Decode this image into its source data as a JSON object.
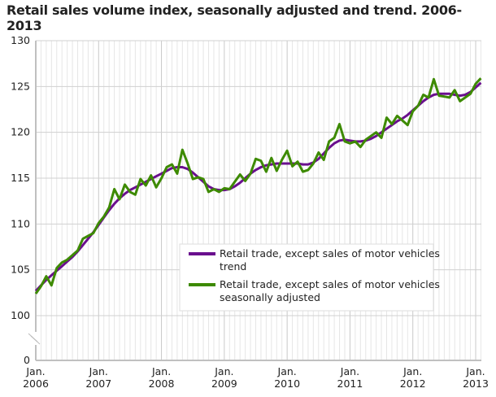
{
  "chart_data": {
    "type": "line",
    "title": "Retail sales volume index, seasonally adjusted and trend. 2006-2013",
    "xlabel": "",
    "ylabel": "",
    "x_start": "2006-01",
    "x_end": "2013-02",
    "x_frequency": "monthly",
    "x_tick_labels": [
      [
        "Jan.",
        "2006"
      ],
      [
        "Jan.",
        "2007"
      ],
      [
        "Jan.",
        "2008"
      ],
      [
        "Jan.",
        "2009"
      ],
      [
        "Jan.",
        "2010"
      ],
      [
        "Jan.",
        "2011"
      ],
      [
        "Jan.",
        "2012"
      ],
      [
        "Jan.",
        "2013"
      ]
    ],
    "y_ticks": [
      0,
      100,
      105,
      110,
      115,
      120,
      125,
      130
    ],
    "ylim": [
      100,
      130
    ],
    "y_axis_break": true,
    "grid": true,
    "legend_placement": "bottom-center",
    "series": [
      {
        "name": "Retail trade, except sales of motor vehicles trend",
        "legend_lines": [
          "Retail trade, except sales of motor vehicles",
          "trend"
        ],
        "color": "#6a0f8e",
        "values": [
          102.7,
          103.3,
          103.9,
          104.4,
          104.9,
          105.4,
          105.9,
          106.4,
          107.0,
          107.7,
          108.4,
          109.1,
          109.9,
          110.7,
          111.5,
          112.2,
          112.8,
          113.3,
          113.7,
          114.0,
          114.3,
          114.6,
          114.9,
          115.2,
          115.5,
          115.8,
          116.1,
          116.2,
          116.2,
          116.0,
          115.6,
          115.1,
          114.6,
          114.1,
          113.8,
          113.7,
          113.7,
          113.8,
          114.1,
          114.5,
          115.0,
          115.5,
          115.9,
          116.2,
          116.4,
          116.5,
          116.6,
          116.6,
          116.6,
          116.6,
          116.6,
          116.5,
          116.5,
          116.7,
          117.1,
          117.7,
          118.3,
          118.8,
          119.1,
          119.2,
          119.1,
          119.0,
          119.0,
          119.1,
          119.3,
          119.6,
          120.0,
          120.4,
          120.8,
          121.2,
          121.5,
          121.9,
          122.4,
          122.9,
          123.4,
          123.8,
          124.1,
          124.2,
          124.2,
          124.2,
          124.1,
          124.0,
          124.1,
          124.4,
          124.9,
          125.4
        ]
      },
      {
        "name": "Retail trade, except sales of motor vehicles seasonally adjusted",
        "legend_lines": [
          "Retail trade, except sales of motor vehicles",
          " seasonally adjusted"
        ],
        "color": "#3d8a00",
        "values": [
          102.4,
          103.2,
          104.3,
          103.3,
          105.2,
          105.8,
          106.1,
          106.6,
          107.1,
          108.4,
          108.7,
          109.0,
          110.1,
          110.8,
          111.8,
          113.8,
          112.7,
          114.3,
          113.5,
          113.2,
          114.9,
          114.2,
          115.3,
          114.0,
          115.0,
          116.2,
          116.5,
          115.5,
          118.1,
          116.6,
          114.9,
          115.1,
          114.9,
          113.5,
          113.8,
          113.5,
          113.9,
          113.8,
          114.6,
          115.4,
          114.7,
          115.5,
          117.1,
          116.9,
          115.7,
          117.2,
          115.8,
          117.0,
          118.0,
          116.3,
          116.8,
          115.7,
          115.9,
          116.6,
          117.8,
          117.0,
          119.0,
          119.4,
          120.9,
          119.0,
          118.8,
          119.0,
          118.4,
          119.2,
          119.6,
          120.0,
          119.4,
          121.6,
          120.9,
          121.8,
          121.3,
          120.8,
          122.3,
          122.9,
          124.1,
          123.8,
          125.8,
          124.0,
          123.9,
          123.8,
          124.6,
          123.4,
          123.8,
          124.2,
          125.3,
          125.9
        ]
      }
    ]
  }
}
